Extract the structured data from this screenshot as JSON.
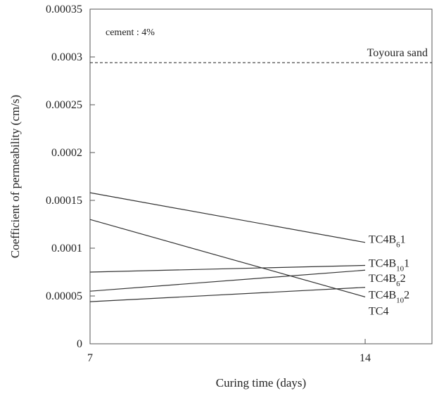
{
  "chart_data": {
    "type": "line",
    "title": "",
    "xlabel": "Curing time (days)",
    "ylabel": "Coefficient of permeability (cm/s)",
    "x": [
      7,
      14
    ],
    "xlim": [
      7,
      15.7
    ],
    "ylim": [
      0,
      0.00035
    ],
    "x_ticks": [
      {
        "value": 7,
        "label": "7"
      },
      {
        "value": 14,
        "label": "14"
      }
    ],
    "y_ticks": [
      {
        "value": 0,
        "label": "0"
      },
      {
        "value": 5e-05,
        "label": "0.00005"
      },
      {
        "value": 0.0001,
        "label": "0.0001"
      },
      {
        "value": 0.00015,
        "label": "0.00015"
      },
      {
        "value": 0.0002,
        "label": "0.0002"
      },
      {
        "value": 0.00025,
        "label": "0.00025"
      },
      {
        "value": 0.0003,
        "label": "0.0003"
      },
      {
        "value": 0.00035,
        "label": "0.00035"
      }
    ],
    "grid": false,
    "series": [
      {
        "name": "TC4B61",
        "label_base": "TC4B",
        "label_sub": "6",
        "label_suffix": "1",
        "values": [
          0.000158,
          0.000106
        ],
        "label_y": 0.00011
      },
      {
        "name": "TC4B101",
        "label_base": "TC4B",
        "label_sub": "10",
        "label_suffix": "1",
        "values": [
          7.5e-05,
          8.2e-05
        ],
        "label_y": 8.5e-05
      },
      {
        "name": "TC4B62",
        "label_base": "TC4B",
        "label_sub": "6",
        "label_suffix": "2",
        "values": [
          5.5e-05,
          7.7e-05
        ],
        "label_y": 6.9e-05
      },
      {
        "name": "TC4B102",
        "label_base": "TC4B",
        "label_sub": "10",
        "label_suffix": "2",
        "values": [
          4.4e-05,
          5.9e-05
        ],
        "label_y": 5.2e-05
      },
      {
        "name": "TC4",
        "label_base": "TC4",
        "label_sub": "",
        "label_suffix": "",
        "values": [
          0.00013,
          4.9e-05
        ],
        "label_y": 3.5e-05
      }
    ],
    "reference_lines": [
      {
        "label": "Toyoura sand",
        "value": 0.000294,
        "style": "dashed"
      }
    ],
    "annotations": [
      {
        "text": "cement : 4%"
      }
    ]
  }
}
